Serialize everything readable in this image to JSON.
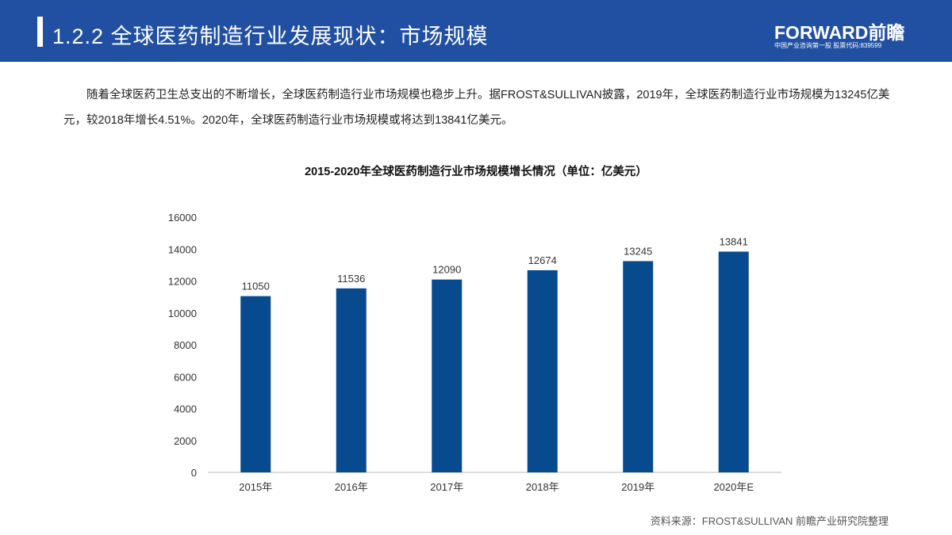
{
  "header": {
    "title": "1.2.2 全球医药制造行业发展现状：市场规模",
    "logo": "FORWARD前瞻",
    "logo_sub": "中国产业咨询第一股  股票代码:839599"
  },
  "paragraph": "随着全球医药卫生总支出的不断增长，全球医药制造行业市场规模也稳步上升。据FROST&SULLIVAN披露，2019年，全球医药制造行业市场规模为13245亿美元，较2018年增长4.51%。2020年，全球医药制造行业市场规模或将达到13841亿美元。",
  "source": "资料来源：FROST&SULLIVAN 前瞻产业研究院整理",
  "colors": {
    "header": "#2150a3",
    "bar": "#074b8e"
  },
  "chart_data": {
    "type": "bar",
    "title": "2015-2020年全球医药制造行业市场规模增长情况（单位：亿美元）",
    "categories": [
      "2015年",
      "2016年",
      "2017年",
      "2018年",
      "2019年",
      "2020年E"
    ],
    "values": [
      11050,
      11536,
      12090,
      12674,
      13245,
      13841
    ],
    "yticks": [
      "0",
      "2000",
      "4000",
      "6000",
      "8000",
      "10000",
      "12000",
      "14000",
      "16000"
    ],
    "ylim": [
      0,
      16000
    ],
    "xlabel": "",
    "ylabel": "",
    "grid": false
  }
}
